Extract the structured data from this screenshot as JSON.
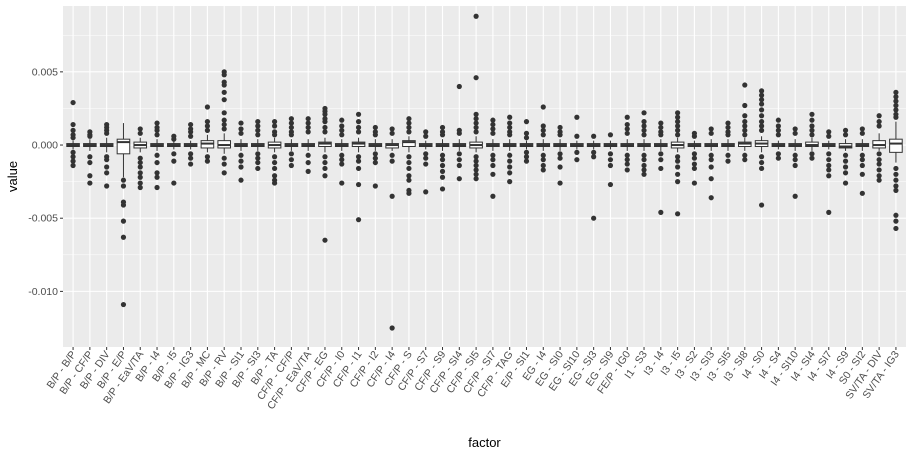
{
  "chart_data": {
    "type": "boxplot",
    "xlabel": "factor",
    "ylabel": "value",
    "ylim": [
      -0.0138,
      0.0095
    ],
    "y_ticks": [
      {
        "value": -0.01,
        "label": "-0.010"
      },
      {
        "value": -0.005,
        "label": "-0.005"
      },
      {
        "value": 0.0,
        "label": "0.000"
      },
      {
        "value": 0.005,
        "label": "0.005"
      }
    ],
    "grid": true,
    "background": "#ebebeb",
    "grid_major_color": "#ffffff",
    "box_fill": "#ffffff",
    "box_line_color": "#333333",
    "outlier_color": "#333333",
    "boxes": [
      {
        "name": "B/P - B/P",
        "stats": [
          -0.0003,
          -0.0001,
          0.0,
          0.0001,
          0.0003
        ],
        "outliers": [
          0.0029,
          0.0014,
          0.001,
          0.0007,
          0.0005,
          -0.0005,
          -0.0008,
          -0.0011,
          -0.0014
        ]
      },
      {
        "name": "B/P - CF/P",
        "stats": [
          -0.0004,
          -0.0001,
          0.0,
          0.0001,
          0.0004
        ],
        "outliers": [
          0.0009,
          0.0007,
          0.0006,
          -0.0008,
          -0.0012,
          -0.0021,
          -0.0026
        ]
      },
      {
        "name": "B/P - DIV",
        "stats": [
          -0.0005,
          -0.0001,
          0.0,
          0.0001,
          0.0005
        ],
        "outliers": [
          0.0014,
          0.0012,
          0.001,
          0.0008,
          -0.0008,
          -0.001,
          -0.0015,
          -0.0019,
          -0.0028
        ]
      },
      {
        "name": "B/P - E/P",
        "stats": [
          -0.0022,
          -0.0006,
          0.0002,
          0.0004,
          0.0015
        ],
        "outliers": [
          -0.0024,
          -0.0028,
          -0.0039,
          -0.0041,
          -0.0052,
          -0.0063,
          -0.0109
        ]
      },
      {
        "name": "B/P - EaV/TA",
        "stats": [
          -0.0005,
          -0.0002,
          0.0,
          0.0002,
          0.0005
        ],
        "outliers": [
          0.0011,
          0.0008,
          -0.0009,
          -0.0012,
          -0.0015,
          -0.0019,
          -0.0022,
          -0.0026,
          -0.0029
        ]
      },
      {
        "name": "B/P - I4",
        "stats": [
          -0.0004,
          -0.0001,
          0.0,
          0.0001,
          0.0004
        ],
        "outliers": [
          0.0015,
          0.0012,
          0.001,
          0.0007,
          -0.0007,
          -0.0012,
          -0.0019,
          -0.0022,
          -0.0029
        ]
      },
      {
        "name": "B/P - I5",
        "stats": [
          -0.0003,
          -0.0001,
          0.0,
          0.0001,
          0.0003
        ],
        "outliers": [
          0.0006,
          0.0004,
          -0.0006,
          -0.0011,
          -0.0026
        ]
      },
      {
        "name": "B/P - IG3",
        "stats": [
          -0.0003,
          -0.0001,
          0.0,
          0.0001,
          0.0003
        ],
        "outliers": [
          0.0014,
          0.0011,
          0.0009,
          0.0006,
          -0.0006,
          -0.0009,
          -0.0013
        ]
      },
      {
        "name": "B/P - MC",
        "stats": [
          -0.0005,
          -0.0002,
          0.0001,
          0.0003,
          0.0007
        ],
        "outliers": [
          0.0026,
          0.0016,
          0.0013,
          0.001,
          -0.0008,
          -0.0011
        ]
      },
      {
        "name": "B/P - RV",
        "stats": [
          -0.0006,
          -0.0002,
          0.0,
          0.0003,
          0.0008
        ],
        "outliers": [
          0.005,
          0.0048,
          0.0043,
          0.0041,
          0.0036,
          0.0031,
          0.0022,
          0.0017,
          0.0014,
          0.0011,
          -0.0009,
          -0.0013,
          -0.0019
        ]
      },
      {
        "name": "B/P - SI1",
        "stats": [
          -0.0004,
          -0.0001,
          0.0,
          0.0001,
          0.0004
        ],
        "outliers": [
          0.0015,
          0.0011,
          0.0008,
          -0.0007,
          -0.0011,
          -0.0015,
          -0.0024
        ]
      },
      {
        "name": "B/P - SI3",
        "stats": [
          -0.0004,
          -0.0001,
          0.0,
          0.0001,
          0.0004
        ],
        "outliers": [
          0.0016,
          0.0013,
          0.001,
          0.0007,
          -0.0006,
          -0.0009,
          -0.0012,
          -0.0016
        ]
      },
      {
        "name": "B/P - TA",
        "stats": [
          -0.0005,
          -0.0002,
          0.0,
          0.0002,
          0.0005
        ],
        "outliers": [
          0.0016,
          0.0013,
          0.0009,
          0.0007,
          -0.0008,
          -0.0012,
          -0.0016,
          -0.0021,
          -0.0024,
          -0.0026
        ]
      },
      {
        "name": "CF/P - CF/P",
        "stats": [
          -0.0004,
          -0.0001,
          0.0,
          0.0001,
          0.0004
        ],
        "outliers": [
          0.0018,
          0.0015,
          0.0012,
          0.0009,
          0.0007,
          -0.0006,
          -0.001,
          -0.0014
        ]
      },
      {
        "name": "CF/P - EaV/TA",
        "stats": [
          -0.0004,
          -0.0001,
          0.0,
          0.0001,
          0.0004
        ],
        "outliers": [
          0.0018,
          0.0015,
          0.0012,
          0.0009,
          -0.0007,
          -0.0012,
          -0.0018
        ]
      },
      {
        "name": "CF/P - EG",
        "stats": [
          -0.0005,
          -0.0001,
          0.0001,
          0.0002,
          0.0005
        ],
        "outliers": [
          0.0025,
          0.0023,
          0.0021,
          0.0018,
          0.0016,
          0.0012,
          0.0009,
          -0.0008,
          -0.0012,
          -0.0016,
          -0.0021,
          -0.0065
        ]
      },
      {
        "name": "CF/P - I0",
        "stats": [
          -0.0004,
          -0.0001,
          0.0,
          0.0001,
          0.0004
        ],
        "outliers": [
          0.0017,
          0.0013,
          0.001,
          0.0007,
          -0.0007,
          -0.001,
          -0.0013,
          -0.0026
        ]
      },
      {
        "name": "CF/P - I1",
        "stats": [
          -0.0005,
          -0.0001,
          0.0001,
          0.0002,
          0.0005
        ],
        "outliers": [
          0.0021,
          0.0016,
          0.0012,
          0.0009,
          -0.0008,
          -0.0011,
          -0.0016,
          -0.0027,
          -0.0051
        ]
      },
      {
        "name": "CF/P - I2",
        "stats": [
          -0.0004,
          -0.0001,
          0.0,
          0.0001,
          0.0004
        ],
        "outliers": [
          0.0012,
          0.0009,
          0.0007,
          -0.0006,
          -0.0009,
          -0.0012,
          -0.0028
        ]
      },
      {
        "name": "CF/P - I4",
        "stats": [
          -0.0004,
          -0.0002,
          0.0,
          0.0001,
          0.0004
        ],
        "outliers": [
          0.0011,
          0.0008,
          -0.0007,
          -0.0011,
          -0.0035,
          -0.0125
        ]
      },
      {
        "name": "CF/P - S",
        "stats": [
          -0.0005,
          -0.0001,
          0.0002,
          0.0003,
          0.0006
        ],
        "outliers": [
          0.0018,
          0.0015,
          0.0012,
          0.0009,
          -0.0008,
          -0.0012,
          -0.0016,
          -0.0021,
          -0.0024,
          -0.0031,
          -0.0033
        ]
      },
      {
        "name": "CF/P - S7",
        "stats": [
          -0.0003,
          -0.0001,
          0.0,
          0.0001,
          0.0003
        ],
        "outliers": [
          0.0009,
          0.0006,
          -0.0006,
          -0.0009,
          -0.0013,
          -0.0032
        ]
      },
      {
        "name": "CF/P - S9",
        "stats": [
          -0.0004,
          -0.0001,
          0.0,
          0.0001,
          0.0004
        ],
        "outliers": [
          0.0012,
          0.0009,
          0.0007,
          -0.0007,
          -0.001,
          -0.0014,
          -0.0018,
          -0.0022,
          -0.003
        ]
      },
      {
        "name": "CF/P - SI4",
        "stats": [
          -0.0004,
          -0.0001,
          0.0,
          0.0001,
          0.0004
        ],
        "outliers": [
          0.004,
          0.001,
          0.0008,
          -0.0006,
          -0.001,
          -0.0014,
          -0.0023
        ]
      },
      {
        "name": "CF/P - SI5",
        "stats": [
          -0.0005,
          -0.0002,
          0.0,
          0.0002,
          0.0006
        ],
        "outliers": [
          0.0088,
          0.0046,
          0.0021,
          0.0018,
          0.0015,
          0.0012,
          0.0009,
          -0.0008,
          -0.0011,
          -0.0014,
          -0.0017,
          -0.002,
          -0.0023
        ]
      },
      {
        "name": "CF/P - SI7",
        "stats": [
          -0.0004,
          -0.0001,
          0.0,
          0.0001,
          0.0004
        ],
        "outliers": [
          0.0017,
          0.0014,
          0.0011,
          0.0008,
          -0.0007,
          -0.001,
          -0.0014,
          -0.002,
          -0.0035
        ]
      },
      {
        "name": "CF/P - TAG",
        "stats": [
          -0.0004,
          -0.0001,
          0.0,
          0.0001,
          0.0004
        ],
        "outliers": [
          0.0019,
          0.0015,
          0.0012,
          0.0009,
          0.0007,
          -0.0007,
          -0.0011,
          -0.0015,
          -0.0019,
          -0.0025
        ]
      },
      {
        "name": "E/P - SI1",
        "stats": [
          -0.0003,
          -0.0001,
          0.0,
          0.0001,
          0.0003
        ],
        "outliers": [
          0.0016,
          0.0008,
          0.0005,
          -0.0005,
          -0.0008,
          -0.0011
        ]
      },
      {
        "name": "EG - I4",
        "stats": [
          -0.0004,
          -0.0001,
          0.0,
          0.0001,
          0.0004
        ],
        "outliers": [
          0.0026,
          0.0013,
          0.001,
          0.0007,
          -0.0007,
          -0.001,
          -0.0014,
          -0.0017
        ]
      },
      {
        "name": "EG - SI0",
        "stats": [
          -0.0004,
          -0.0001,
          0.0,
          0.0001,
          0.0004
        ],
        "outliers": [
          0.0012,
          0.0009,
          0.0007,
          -0.0006,
          -0.0009,
          -0.0015,
          -0.0026
        ]
      },
      {
        "name": "EG - SI10",
        "stats": [
          -0.0003,
          -0.0001,
          0.0,
          0.0001,
          0.0003
        ],
        "outliers": [
          0.0019,
          0.0006,
          -0.0005,
          -0.001
        ]
      },
      {
        "name": "EG - SI3",
        "stats": [
          -0.0003,
          -0.0001,
          0.0,
          0.0001,
          0.0003
        ],
        "outliers": [
          0.0006,
          -0.0005,
          -0.0008,
          -0.005
        ]
      },
      {
        "name": "EG - SI9",
        "stats": [
          -0.0003,
          -0.0001,
          0.0,
          0.0001,
          0.0003
        ],
        "outliers": [
          0.0007,
          -0.0006,
          -0.001,
          -0.0014,
          -0.0027
        ]
      },
      {
        "name": "FE/P - IG0",
        "stats": [
          -0.0004,
          -0.0001,
          0.0,
          0.0001,
          0.0004
        ],
        "outliers": [
          0.0019,
          0.0014,
          0.0011,
          0.0008,
          -0.0007,
          -0.001,
          -0.0013,
          -0.0017
        ]
      },
      {
        "name": "I1 - S3",
        "stats": [
          -0.0004,
          -0.0001,
          0.0,
          0.0001,
          0.0004
        ],
        "outliers": [
          0.0022,
          0.0016,
          0.0013,
          0.001,
          0.0007,
          -0.0007,
          -0.001,
          -0.0014,
          -0.0017,
          -0.002
        ]
      },
      {
        "name": "I3 - I4",
        "stats": [
          -0.0004,
          -0.0001,
          0.0,
          0.0001,
          0.0004
        ],
        "outliers": [
          0.0015,
          0.0012,
          0.0009,
          0.0007,
          -0.0006,
          -0.001,
          -0.0016,
          -0.0046
        ]
      },
      {
        "name": "I3 - I5",
        "stats": [
          -0.0005,
          -0.0002,
          0.0,
          0.0002,
          0.0005
        ],
        "outliers": [
          0.0022,
          0.0019,
          0.0016,
          0.0013,
          0.001,
          0.0007,
          -0.0008,
          -0.0011,
          -0.0015,
          -0.002,
          -0.0025,
          -0.0047
        ]
      },
      {
        "name": "I3 - S2",
        "stats": [
          -0.0003,
          -0.0001,
          0.0,
          0.0001,
          0.0003
        ],
        "outliers": [
          0.0008,
          0.0006,
          -0.0006,
          -0.0009,
          -0.0013,
          -0.0016,
          -0.0026
        ]
      },
      {
        "name": "I3 - SI3",
        "stats": [
          -0.0004,
          -0.0001,
          0.0,
          0.0001,
          0.0004
        ],
        "outliers": [
          0.0011,
          0.0008,
          -0.0007,
          -0.001,
          -0.0015,
          -0.0023,
          -0.0036
        ]
      },
      {
        "name": "I3 - SI5",
        "stats": [
          -0.0004,
          -0.0001,
          0.0,
          0.0001,
          0.0004
        ],
        "outliers": [
          0.0015,
          0.0012,
          0.0009,
          0.0007,
          -0.0007,
          -0.0011
        ]
      },
      {
        "name": "I3 - SI8",
        "stats": [
          -0.0004,
          -0.0001,
          0.0001,
          0.0002,
          0.0005
        ],
        "outliers": [
          0.0041,
          0.0027,
          0.002,
          0.0016,
          0.0013,
          0.001,
          0.0007,
          -0.0007,
          -0.001
        ]
      },
      {
        "name": "I4 - S0",
        "stats": [
          -0.0005,
          -0.0001,
          0.0001,
          0.0003,
          0.0006
        ],
        "outliers": [
          0.0037,
          0.0034,
          0.0031,
          0.0028,
          0.0024,
          0.002,
          0.0016,
          0.0013,
          0.001,
          -0.0008,
          -0.0012,
          -0.0016,
          -0.0041
        ]
      },
      {
        "name": "I4 - S4",
        "stats": [
          -0.0003,
          -0.0001,
          0.0,
          0.0001,
          0.0003
        ],
        "outliers": [
          0.0017,
          0.0013,
          0.001,
          0.0007,
          -0.0006,
          -0.0009
        ]
      },
      {
        "name": "I4 - SI10",
        "stats": [
          -0.0004,
          -0.0001,
          0.0,
          0.0001,
          0.0004
        ],
        "outliers": [
          0.0011,
          0.0008,
          -0.0007,
          -0.001,
          -0.0014,
          -0.0035
        ]
      },
      {
        "name": "I4 - SI4",
        "stats": [
          -0.0004,
          -0.0001,
          0.0,
          0.0002,
          0.0005
        ],
        "outliers": [
          0.0021,
          0.0017,
          0.0013,
          0.001,
          0.0007,
          -0.0006,
          -0.0009
        ]
      },
      {
        "name": "I4 - SI7",
        "stats": [
          -0.0003,
          -0.0001,
          0.0,
          0.0001,
          0.0003
        ],
        "outliers": [
          0.0009,
          0.0006,
          -0.0006,
          -0.001,
          -0.0014,
          -0.0017,
          -0.0021,
          -0.0046
        ]
      },
      {
        "name": "I4 - S9",
        "stats": [
          -0.0004,
          -0.0002,
          -0.0001,
          0.0001,
          0.0004
        ],
        "outliers": [
          0.001,
          0.0007,
          -0.0007,
          -0.0011,
          -0.0015,
          -0.0019,
          -0.0026
        ]
      },
      {
        "name": "S0 - SI2",
        "stats": [
          -0.0004,
          -0.0001,
          0.0,
          0.0001,
          0.0004
        ],
        "outliers": [
          0.0011,
          0.0008,
          -0.0007,
          -0.001,
          -0.0014,
          -0.002,
          -0.0033
        ]
      },
      {
        "name": "SV/TA - DIV",
        "stats": [
          -0.0004,
          -0.0002,
          0.0,
          0.0003,
          0.0008
        ],
        "outliers": [
          0.002,
          0.0016,
          0.0013,
          -0.0006,
          -0.001,
          -0.0013,
          -0.0017,
          -0.0021,
          -0.0024
        ]
      },
      {
        "name": "SV/TA - IG3",
        "stats": [
          -0.0012,
          -0.0005,
          0.0001,
          0.0004,
          0.0016
        ],
        "outliers": [
          0.0036,
          0.0033,
          0.003,
          0.0027,
          0.0024,
          0.0021,
          0.0019,
          -0.0016,
          -0.002,
          -0.0024,
          -0.0028,
          -0.0031,
          -0.0048,
          -0.0052,
          -0.0057
        ]
      }
    ]
  }
}
